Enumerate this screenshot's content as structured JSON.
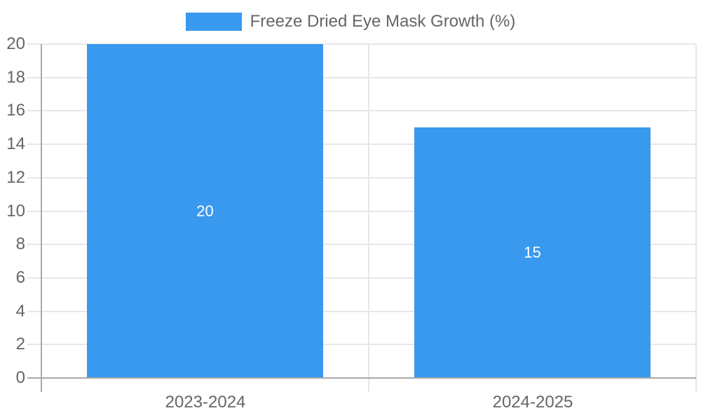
{
  "legend": {
    "label": "Freeze Dried Eye Mask Growth (%)"
  },
  "colors": {
    "bar": "#3999ee",
    "grid": "#e7e7e7",
    "axis": "#a9a9a9",
    "label_text": "#666666",
    "data_label_text": "#ffffff"
  },
  "chart_data": {
    "type": "bar",
    "categories": [
      "2023-2024",
      "2024-2025"
    ],
    "series": [
      {
        "name": "Freeze Dried Eye Mask Growth (%)",
        "values": [
          20,
          15
        ]
      }
    ],
    "data_labels": [
      "20",
      "15"
    ],
    "title": "",
    "xlabel": "",
    "ylabel": "",
    "ylim": [
      0,
      20
    ],
    "yticks": [
      0,
      2,
      4,
      6,
      8,
      10,
      12,
      14,
      16,
      18,
      20
    ],
    "grid": true,
    "legend_position": "top"
  }
}
